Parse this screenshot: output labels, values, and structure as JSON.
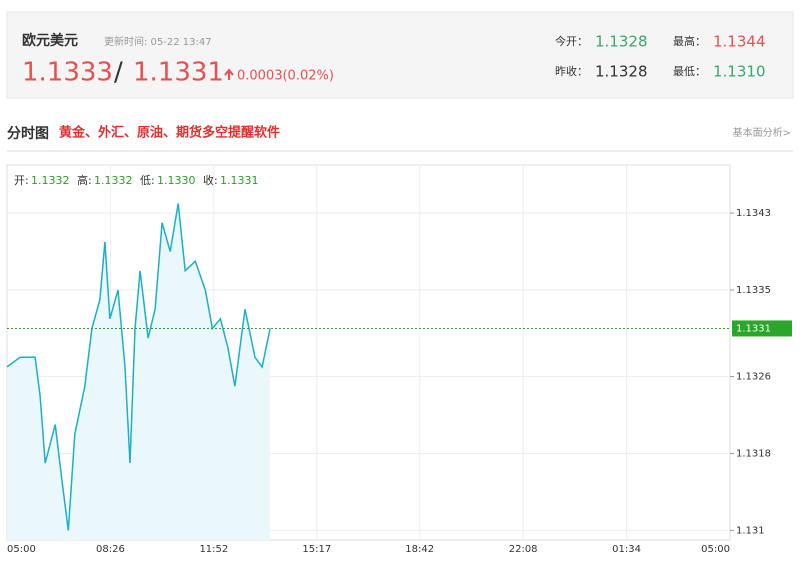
{
  "header": {
    "title": "欧元美元",
    "update_time": "更新时间: 05-22 13:47",
    "price": "1.1333",
    "separator": "/",
    "price2": "1.1331",
    "change": "0.0003(0.02%)",
    "stats": [
      {
        "label": "今开：",
        "value": "1.1328"
      },
      {
        "label": "最高：",
        "value": "1.1344"
      },
      {
        "label": "昨收：",
        "value": "1.1328"
      },
      {
        "label": "最低：",
        "value": "1.1310"
      }
    ]
  },
  "section": {
    "title": "分时图",
    "link": "黄金、外汇、原油、期货多空提醒软件",
    "more": "基本面分析>"
  },
  "info": [
    {
      "label": "开:",
      "value": "1.1332"
    },
    {
      "label": "高:",
      "value": "1.1332"
    },
    {
      "label": "低:",
      "value": "1.1330"
    },
    {
      "label": "收:",
      "value": "1.1331"
    }
  ],
  "chart_data": {
    "type": "line",
    "grid": true,
    "color": "#1ab0c8",
    "x": [
      0,
      26,
      56,
      66,
      76,
      96,
      110,
      122,
      135,
      155,
      169,
      185,
      195,
      205,
      221,
      235,
      245,
      255,
      265,
      281,
      295,
      309,
      325,
      341,
      355,
      375,
      395,
      409,
      425,
      440,
      454,
      474,
      494,
      508,
      524
    ],
    "values": [
      1.1327,
      1.1328,
      1.1328,
      1.1324,
      1.1317,
      1.1321,
      1.1315,
      1.131,
      1.132,
      1.1325,
      1.1331,
      1.1334,
      1.134,
      1.1332,
      1.1335,
      1.1327,
      1.1317,
      1.1331,
      1.1337,
      1.133,
      1.1333,
      1.1342,
      1.1339,
      1.1344,
      1.1337,
      1.1338,
      1.1335,
      1.1331,
      1.1332,
      1.1329,
      1.1325,
      1.1333,
      1.1328,
      1.1327,
      1.1331
    ],
    "xlim": [
      0,
      1440
    ],
    "xticks": [
      {
        "value": 0,
        "label": "05:00"
      },
      {
        "value": 206,
        "label": "08:26"
      },
      {
        "value": 412,
        "label": "11:52"
      },
      {
        "value": 617,
        "label": "15:17"
      },
      {
        "value": 822,
        "label": "18:42"
      },
      {
        "value": 1028,
        "label": "22:08"
      },
      {
        "value": 1234,
        "label": "01:34"
      },
      {
        "value": 1440,
        "label": "05:00"
      }
    ],
    "ylim": [
      1.1309,
      1.1348
    ],
    "yticks": [
      1.1343,
      1.1335,
      1.1326,
      1.1318,
      1.131
    ],
    "current": {
      "value": 1.1331,
      "label": "1.1331"
    }
  }
}
